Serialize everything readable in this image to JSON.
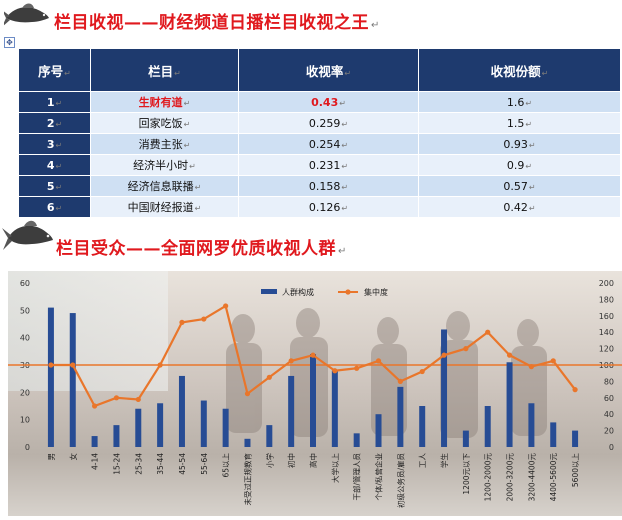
{
  "section1": {
    "title": "栏目收视——财经频道日播栏目收视之王"
  },
  "table": {
    "headers": [
      "序号",
      "栏目",
      "收视率",
      "收视份额"
    ],
    "rows": [
      {
        "no": "1",
        "name": "生财有道",
        "rate": "0.43",
        "share": "1.6"
      },
      {
        "no": "2",
        "name": "回家吃饭",
        "rate": "0.259",
        "share": "1.5"
      },
      {
        "no": "3",
        "name": "消费主张",
        "rate": "0.254",
        "share": "0.93"
      },
      {
        "no": "4",
        "name": "经济半小时",
        "rate": "0.231",
        "share": "0.9"
      },
      {
        "no": "5",
        "name": "经济信息联播",
        "rate": "0.158",
        "share": "0.57"
      },
      {
        "no": "6",
        "name": "中国财经报道",
        "rate": "0.126",
        "share": "0.42"
      }
    ]
  },
  "section2": {
    "title": "栏目受众——全面网罗优质收视人群"
  },
  "chart_data": {
    "type": "bar",
    "categories": [
      "男",
      "女",
      "4-14",
      "15-24",
      "25-34",
      "35-44",
      "45-54",
      "55-64",
      "65以上",
      "未受过正规教育",
      "小学",
      "初中",
      "高中",
      "大学以上",
      "干部/管理人员",
      "个体/私营企业",
      "初级公务员/雇员",
      "工人",
      "学生",
      "1200元以下",
      "1200-2000元",
      "2000-3200元",
      "3200-4400元",
      "4400-5600元",
      "5600以上"
    ],
    "series": [
      {
        "name": "人群构成",
        "axis": "left",
        "type": "bar",
        "values": [
          51,
          49,
          4,
          8,
          14,
          16,
          26,
          17,
          14,
          3,
          8,
          26,
          34,
          28,
          5,
          12,
          22,
          15,
          43,
          6,
          15,
          31,
          16,
          9,
          6
        ]
      },
      {
        "name": "集中度",
        "axis": "right",
        "type": "line",
        "values": [
          100,
          100,
          50,
          60,
          58,
          100,
          152,
          156,
          172,
          65,
          85,
          105,
          112,
          93,
          96,
          105,
          80,
          92,
          112,
          120,
          140,
          112,
          98,
          105,
          70
        ]
      }
    ],
    "left_ylim": [
      0,
      60
    ],
    "left_yticks": [
      "0",
      "10",
      "20",
      "30",
      "40",
      "50",
      "60"
    ],
    "right_ylim": [
      0,
      200
    ],
    "right_yticks": [
      "0",
      "20",
      "40",
      "60",
      "80",
      "100",
      "120",
      "140",
      "160",
      "180",
      "200"
    ],
    "reference_line": 100,
    "colors": {
      "bar": "#274c94",
      "line": "#e9762b",
      "reference": "#e9762b"
    }
  }
}
